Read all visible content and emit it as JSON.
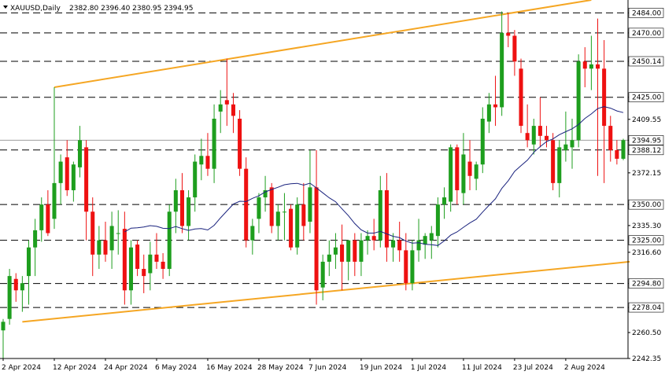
{
  "header": {
    "symbol": "XAUUSD,Daily",
    "ohlc": "2382.80 2396.40 2380.95 2394.95"
  },
  "colors": {
    "bull": "#1e9e1e",
    "bear": "#ee1111",
    "level_line": "#000000",
    "trendline": "#f5a623",
    "ma_line": "#1a237e",
    "current_line": "#9e9e9e"
  },
  "chart_data": {
    "type": "candlestick",
    "ylim": [
      2242.35,
      2493.0
    ],
    "y_ticks": [
      "2242.35",
      "2260.50",
      "2278.04",
      "2294.80",
      "2316.60",
      "2335.30",
      "2350.00",
      "2372.15",
      "2388.12",
      "2394.95",
      "2409.55",
      "2425.00",
      "2450.14",
      "2470.00",
      "2484.00"
    ],
    "x_ticks": [
      {
        "i": 0,
        "label": "2 Apr 2024"
      },
      {
        "i": 8,
        "label": "12 Apr 2024"
      },
      {
        "i": 16,
        "label": "24 Apr 2024"
      },
      {
        "i": 24,
        "label": "6 May 2024"
      },
      {
        "i": 32,
        "label": "16 May 2024"
      },
      {
        "i": 40,
        "label": "28 May 2024"
      },
      {
        "i": 48,
        "label": "7 Jun 2024"
      },
      {
        "i": 56,
        "label": "19 Jun 2024"
      },
      {
        "i": 64,
        "label": "1 Jul 2024"
      },
      {
        "i": 72,
        "label": "11 Jul 2024"
      },
      {
        "i": 80,
        "label": "23 Jul 2024"
      },
      {
        "i": 88,
        "label": "2 Aug 2024"
      }
    ],
    "levels": [
      {
        "value": 2484.0,
        "label": "2484.00"
      },
      {
        "value": 2470.0,
        "label": "2470.00"
      },
      {
        "value": 2450.14,
        "label": "2450.14"
      },
      {
        "value": 2425.0,
        "label": "2425.00"
      },
      {
        "value": 2388.12,
        "label": "2388.12"
      },
      {
        "value": 2350.0,
        "label": "2350.00"
      },
      {
        "value": 2325.0,
        "label": "2325.00"
      },
      {
        "value": 2294.8,
        "label": "2294.80"
      },
      {
        "value": 2278.04,
        "label": "2278.04"
      }
    ],
    "current_price": {
      "value": 2394.95,
      "label": "2394.95"
    },
    "trendlines": [
      {
        "from": {
          "i": 8,
          "price": 2432
        },
        "to": {
          "i": 92,
          "price": 2493
        }
      },
      {
        "from": {
          "i": 3,
          "price": 2268
        },
        "to": {
          "i": 98,
          "price": 2310
        }
      }
    ],
    "candles": [
      [
        2262,
        2270,
        2242,
        2268
      ],
      [
        2270,
        2305,
        2266,
        2300
      ],
      [
        2298,
        2302,
        2282,
        2290
      ],
      [
        2290,
        2300,
        2275,
        2295
      ],
      [
        2300,
        2325,
        2280,
        2320
      ],
      [
        2320,
        2340,
        2300,
        2332
      ],
      [
        2332,
        2355,
        2324,
        2350
      ],
      [
        2350,
        2360,
        2328,
        2330
      ],
      [
        2340,
        2432,
        2333,
        2365
      ],
      [
        2365,
        2385,
        2350,
        2380
      ],
      [
        2383,
        2395,
        2356,
        2360
      ],
      [
        2360,
        2380,
        2352,
        2378
      ],
      [
        2376,
        2405,
        2369,
        2395
      ],
      [
        2390,
        2395,
        2325,
        2345
      ],
      [
        2345,
        2355,
        2300,
        2315
      ],
      [
        2315,
        2335,
        2305,
        2325
      ],
      [
        2325,
        2338,
        2310,
        2315
      ],
      [
        2318,
        2345,
        2305,
        2335
      ],
      [
        2330,
        2346,
        2315,
        2330
      ],
      [
        2333,
        2345,
        2280,
        2290
      ],
      [
        2290,
        2325,
        2280,
        2320
      ],
      [
        2322,
        2325,
        2300,
        2305
      ],
      [
        2305,
        2315,
        2288,
        2300
      ],
      [
        2302,
        2324,
        2290,
        2315
      ],
      [
        2315,
        2330,
        2305,
        2310
      ],
      [
        2310,
        2316,
        2298,
        2305
      ],
      [
        2305,
        2350,
        2300,
        2345
      ],
      [
        2345,
        2368,
        2330,
        2360
      ],
      [
        2360,
        2372,
        2330,
        2335
      ],
      [
        2335,
        2360,
        2325,
        2355
      ],
      [
        2355,
        2385,
        2345,
        2380
      ],
      [
        2378,
        2396,
        2367,
        2384
      ],
      [
        2384,
        2400,
        2370,
        2375
      ],
      [
        2375,
        2420,
        2365,
        2410
      ],
      [
        2415,
        2430,
        2400,
        2420
      ],
      [
        2423,
        2452,
        2405,
        2420
      ],
      [
        2420,
        2428,
        2400,
        2412
      ],
      [
        2410,
        2416,
        2370,
        2375
      ],
      [
        2375,
        2383,
        2320,
        2325
      ],
      [
        2325,
        2340,
        2315,
        2335
      ],
      [
        2340,
        2358,
        2330,
        2355
      ],
      [
        2355,
        2370,
        2345,
        2360
      ],
      [
        2362,
        2365,
        2330,
        2335
      ],
      [
        2335,
        2350,
        2325,
        2345
      ],
      [
        2345,
        2358,
        2325,
        2345
      ],
      [
        2347,
        2350,
        2318,
        2320
      ],
      [
        2320,
        2355,
        2315,
        2350
      ],
      [
        2350,
        2365,
        2325,
        2335
      ],
      [
        2338,
        2388,
        2330,
        2362
      ],
      [
        2362,
        2388,
        2280,
        2290
      ],
      [
        2292,
        2315,
        2283,
        2310
      ],
      [
        2310,
        2325,
        2300,
        2315
      ],
      [
        2315,
        2330,
        2305,
        2320
      ],
      [
        2322,
        2336,
        2290,
        2310
      ],
      [
        2310,
        2325,
        2297,
        2325
      ],
      [
        2325,
        2330,
        2300,
        2310
      ],
      [
        2310,
        2330,
        2300,
        2325
      ],
      [
        2325,
        2332,
        2315,
        2328
      ],
      [
        2328,
        2340,
        2318,
        2325
      ],
      [
        2325,
        2370,
        2320,
        2360
      ],
      [
        2360,
        2372,
        2310,
        2320
      ],
      [
        2320,
        2330,
        2310,
        2325
      ],
      [
        2325,
        2338,
        2310,
        2318
      ],
      [
        2318,
        2330,
        2290,
        2295
      ],
      [
        2295,
        2325,
        2290,
        2318
      ],
      [
        2318,
        2340,
        2310,
        2325
      ],
      [
        2322,
        2330,
        2312,
        2328
      ],
      [
        2325,
        2335,
        2312,
        2330
      ],
      [
        2328,
        2355,
        2320,
        2350
      ],
      [
        2350,
        2362,
        2340,
        2355
      ],
      [
        2352,
        2392,
        2345,
        2390
      ],
      [
        2390,
        2392,
        2350,
        2360
      ],
      [
        2358,
        2400,
        2350,
        2385
      ],
      [
        2380,
        2395,
        2360,
        2370
      ],
      [
        2368,
        2380,
        2360,
        2378
      ],
      [
        2378,
        2418,
        2372,
        2410
      ],
      [
        2408,
        2428,
        2400,
        2420
      ],
      [
        2420,
        2440,
        2405,
        2418
      ],
      [
        2418,
        2485,
        2412,
        2470
      ],
      [
        2470,
        2484,
        2460,
        2468
      ],
      [
        2468,
        2472,
        2440,
        2450
      ],
      [
        2445,
        2452,
        2400,
        2405
      ],
      [
        2400,
        2420,
        2390,
        2395
      ],
      [
        2392,
        2410,
        2385,
        2405
      ],
      [
        2405,
        2425,
        2390,
        2398
      ],
      [
        2398,
        2405,
        2390,
        2395
      ],
      [
        2395,
        2400,
        2360,
        2365
      ],
      [
        2365,
        2395,
        2355,
        2390
      ],
      [
        2388,
        2415,
        2380,
        2392
      ],
      [
        2390,
        2410,
        2375,
        2395
      ],
      [
        2395,
        2455,
        2390,
        2450
      ],
      [
        2450,
        2460,
        2432,
        2445
      ],
      [
        2445,
        2468,
        2430,
        2448
      ],
      [
        2448,
        2480,
        2370,
        2445
      ],
      [
        2445,
        2465,
        2365,
        2405
      ],
      [
        2405,
        2412,
        2380,
        2388
      ],
      [
        2388,
        2395,
        2378,
        2382
      ],
      [
        2382,
        2396,
        2381,
        2395
      ]
    ],
    "ma_period": 20
  }
}
